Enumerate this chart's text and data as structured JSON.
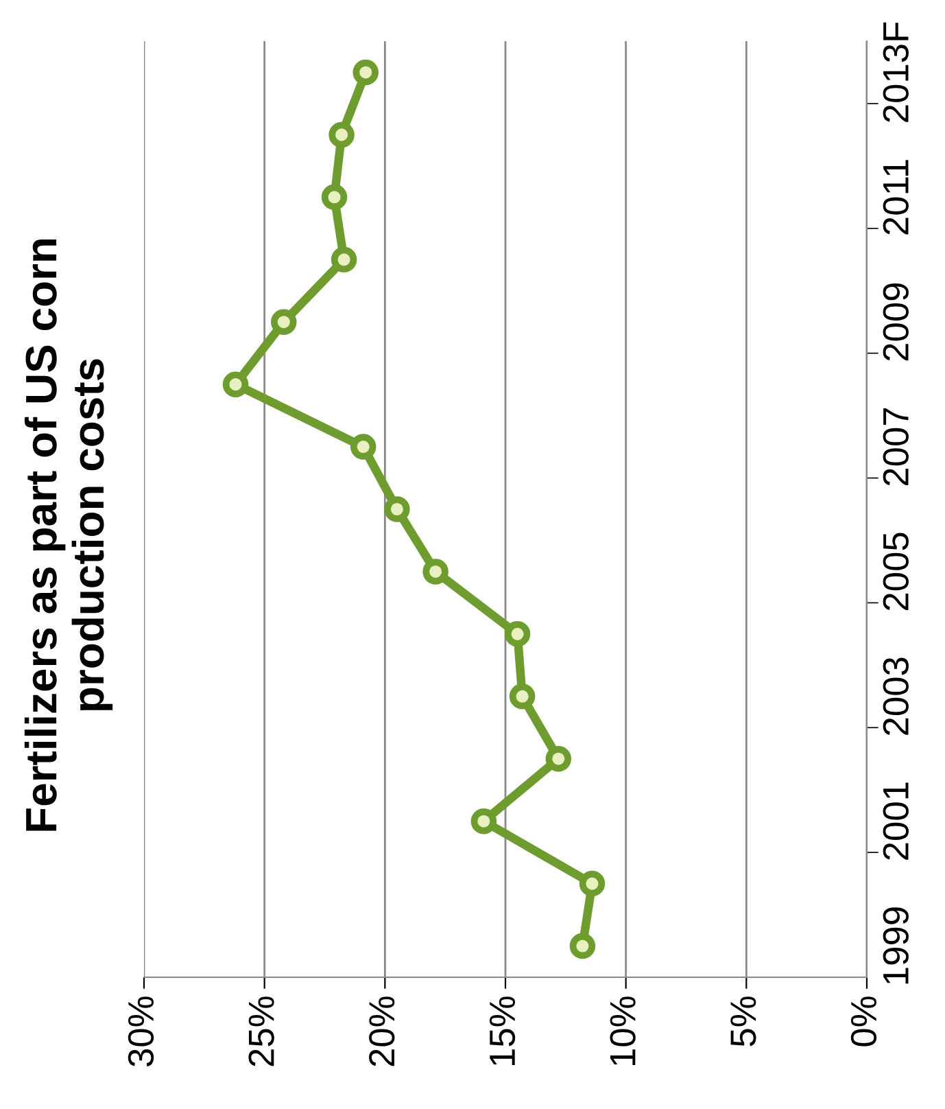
{
  "chart_data": {
    "type": "line",
    "orientation": "horizontal",
    "title": "Fertilizers as part of US corn\nproduction costs",
    "categories": [
      "2013F",
      null,
      "2011",
      null,
      "2009",
      null,
      "2007",
      null,
      "2005",
      null,
      "2003",
      null,
      "2001",
      null,
      "1999"
    ],
    "series": [
      {
        "color": "#6e9c2e",
        "values": [
          20.8,
          21.8,
          22.1,
          21.7,
          24.2,
          26.2,
          20.9,
          19.5,
          17.9,
          14.5,
          14.3,
          12.8,
          15.9,
          11.4,
          11.8
        ]
      }
    ],
    "xlim": [
      30,
      0
    ],
    "xticks": [
      {
        "value": 0,
        "label": "0%"
      },
      {
        "value": 5,
        "label": "5%"
      },
      {
        "value": 10,
        "label": "10%"
      },
      {
        "value": 15,
        "label": "15%"
      },
      {
        "value": 20,
        "label": "20%"
      },
      {
        "value": 25,
        "label": "25%"
      },
      {
        "value": 30,
        "label": "30%"
      }
    ],
    "grid": "x",
    "marker": "circle",
    "line_style": "solid"
  }
}
